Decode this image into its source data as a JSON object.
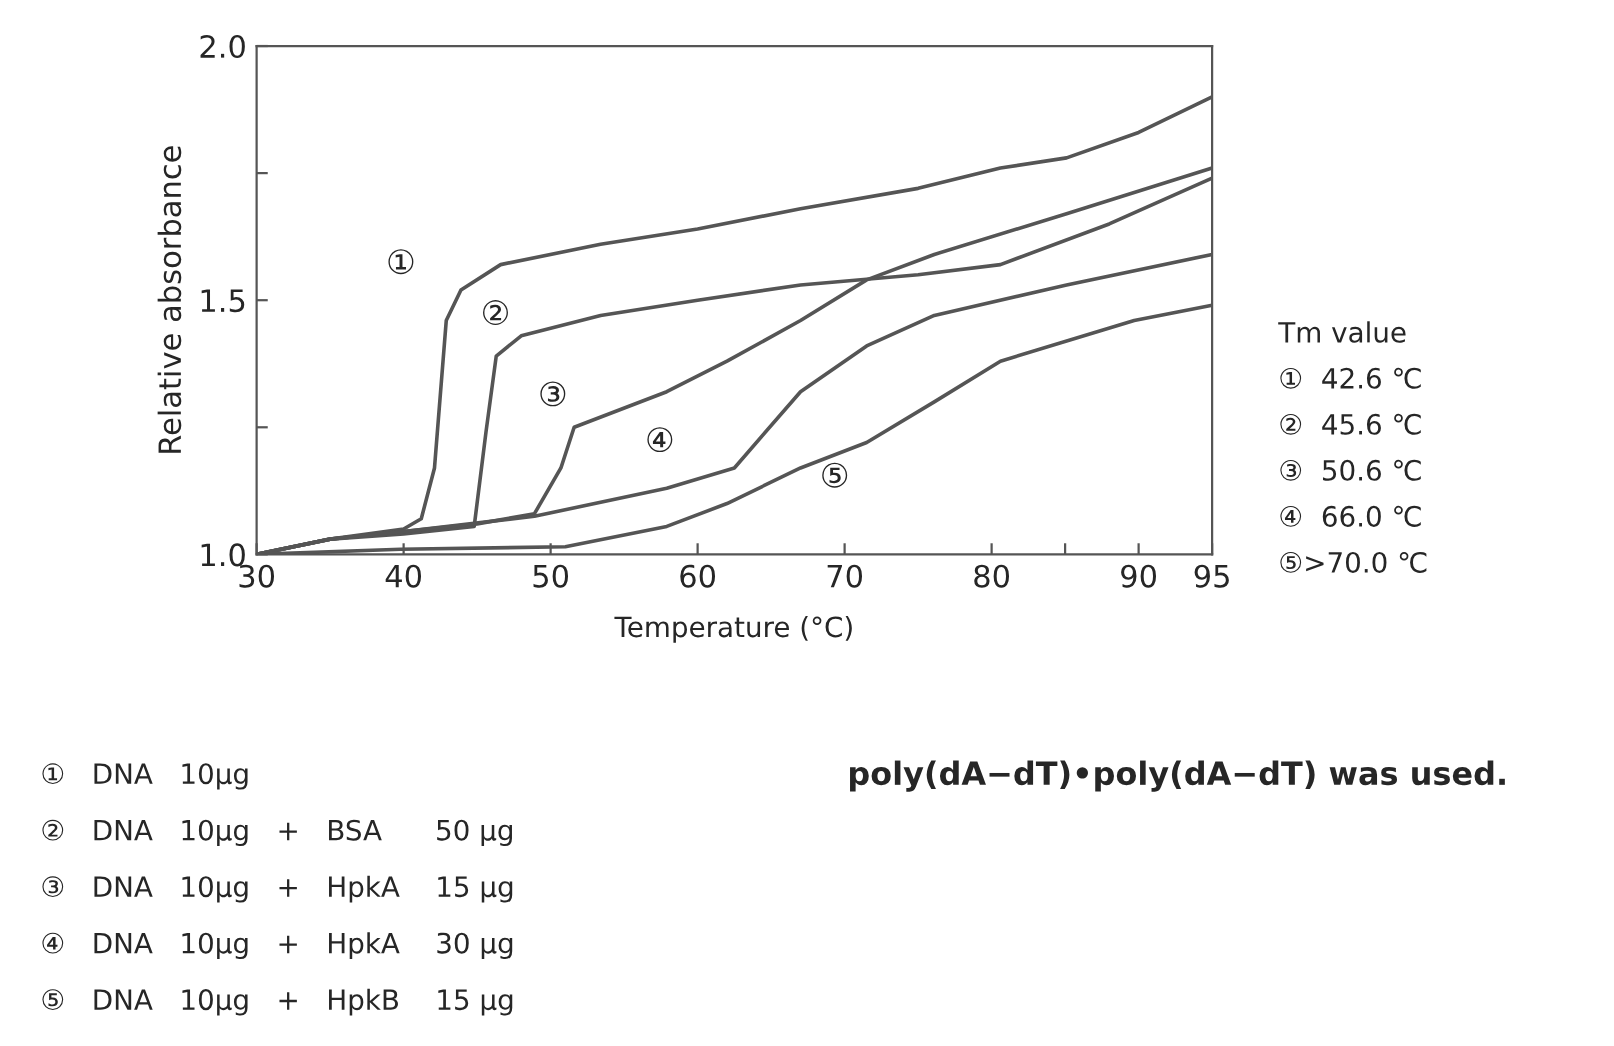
{
  "chart_data": {
    "type": "line",
    "xlabel": "Temperature (°C)",
    "ylabel": "Relative absorbance",
    "xlim": [
      30,
      95
    ],
    "xticks": [
      30,
      40,
      50,
      60,
      70,
      80,
      {
        "value": 85,
        "label": null
      },
      90,
      95
    ],
    "ylim": [
      1.0,
      2.0
    ],
    "yticks": [
      {
        "value": 1.0,
        "label": "1.0"
      },
      {
        "value": 1.25,
        "label": null
      },
      1.5,
      {
        "value": 1.75,
        "label": null
      },
      {
        "value": 2.0,
        "label": "2.0"
      }
    ],
    "grid": false,
    "marker": "none",
    "line_style": "solid",
    "series": [
      {
        "color": "#555555",
        "x": [
          30,
          35,
          40,
          41.2,
          42.1,
          42.9,
          43.9,
          46.6,
          53.4,
          60,
          67,
          75,
          80.6,
          85.1,
          90,
          95
        ],
        "values": [
          1.0,
          1.03,
          1.05,
          1.07,
          1.17,
          1.46,
          1.52,
          1.57,
          1.61,
          1.64,
          1.68,
          1.72,
          1.76,
          1.78,
          1.83,
          1.9
        ]
      },
      {
        "color": "#555555",
        "x": [
          30,
          35,
          40,
          44.8,
          45.6,
          46.3,
          48,
          53.4,
          60,
          67,
          75,
          80.6,
          88,
          95
        ],
        "values": [
          1.0,
          1.03,
          1.04,
          1.055,
          1.24,
          1.39,
          1.43,
          1.47,
          1.5,
          1.53,
          1.55,
          1.57,
          1.65,
          1.74
        ]
      },
      {
        "color": "#555555",
        "x": [
          30,
          35,
          40,
          45,
          48.9,
          50.7,
          51.6,
          57.9,
          62,
          67,
          71.5,
          76.1,
          85.1,
          95
        ],
        "values": [
          1.0,
          1.03,
          1.045,
          1.06,
          1.08,
          1.17,
          1.25,
          1.32,
          1.38,
          1.46,
          1.54,
          1.59,
          1.67,
          1.76
        ]
      },
      {
        "color": "#555555",
        "x": [
          30,
          35,
          40,
          48.9,
          57.9,
          62.5,
          67,
          71.5,
          76.1,
          85.1,
          95
        ],
        "values": [
          1.0,
          1.03,
          1.045,
          1.075,
          1.13,
          1.17,
          1.32,
          1.41,
          1.47,
          1.53,
          1.59
        ]
      },
      {
        "color": "#555555",
        "x": [
          30,
          39.8,
          51,
          57.9,
          62,
          67,
          71.5,
          76.1,
          80.6,
          89.7,
          95
        ],
        "values": [
          1.0,
          1.01,
          1.015,
          1.055,
          1.1,
          1.17,
          1.22,
          1.3,
          1.38,
          1.46,
          1.49
        ]
      }
    ],
    "annotations": [
      "①",
      "②",
      "③",
      "④",
      "⑤",
      "Tm value",
      "①  42.6 ℃",
      "②  45.6 ℃",
      "③  50.6 ℃",
      "④  66.0 ℃",
      "⑤>70.0 ℃",
      "poly(dA−dT)•poly(dA−dT) was used.",
      "①   DNA   10μg",
      "②   DNA   10μg   +   BSA      50 μg",
      "③   DNA   10μg   +   HpkA    15 μg",
      "④   DNA   10μg   +   HpkA    30 μg",
      "⑤   DNA   10μg   +   HpkB    15 μg"
    ]
  }
}
